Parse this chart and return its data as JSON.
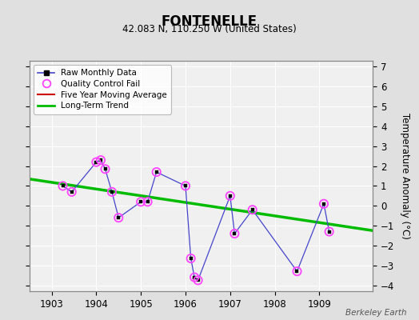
{
  "title": "FONTENELLE",
  "subtitle": "42.083 N, 110.250 W (United States)",
  "ylabel": "Temperature Anomaly (°C)",
  "credit": "Berkeley Earth",
  "xlim": [
    1902.5,
    1910.2
  ],
  "ylim": [
    -4.3,
    7.3
  ],
  "xticks": [
    1903,
    1904,
    1905,
    1906,
    1907,
    1908,
    1909
  ],
  "yticks": [
    -4,
    -3,
    -2,
    -1,
    0,
    1,
    2,
    3,
    4,
    5,
    6,
    7
  ],
  "bg_color": "#e0e0e0",
  "plot_bg_color": "#f0f0f0",
  "raw_data_x": [
    1903.25,
    1903.45,
    1904.0,
    1904.1,
    1904.2,
    1904.35,
    1904.5,
    1905.0,
    1905.15,
    1905.35,
    1906.0,
    1906.12,
    1906.2,
    1906.28,
    1907.0,
    1907.1,
    1907.5,
    1908.5,
    1909.1,
    1909.22
  ],
  "raw_data_y": [
    1.0,
    0.7,
    2.2,
    2.3,
    1.85,
    0.7,
    -0.6,
    0.2,
    0.2,
    1.7,
    1.0,
    -2.65,
    -3.6,
    -3.75,
    0.5,
    -1.4,
    -0.2,
    -3.3,
    0.1,
    -1.3
  ],
  "qc_fail_x": [
    1903.25,
    1903.45,
    1904.0,
    1904.1,
    1904.2,
    1904.35,
    1904.5,
    1905.0,
    1905.15,
    1905.35,
    1906.0,
    1906.12,
    1906.2,
    1906.28,
    1907.0,
    1907.1,
    1907.5,
    1908.5,
    1909.1,
    1909.22
  ],
  "qc_fail_y": [
    1.0,
    0.7,
    2.2,
    2.3,
    1.85,
    0.7,
    -0.6,
    0.2,
    0.2,
    1.7,
    1.0,
    -2.65,
    -3.6,
    -3.75,
    0.5,
    -1.4,
    -0.2,
    -3.3,
    0.1,
    -1.3
  ],
  "trend_x": [
    1902.5,
    1910.2
  ],
  "trend_y": [
    1.35,
    -1.25
  ],
  "line_color": "#4444cc",
  "qc_color": "#ff44ff",
  "trend_color": "#00bb00",
  "ma_color": "#cc0000"
}
